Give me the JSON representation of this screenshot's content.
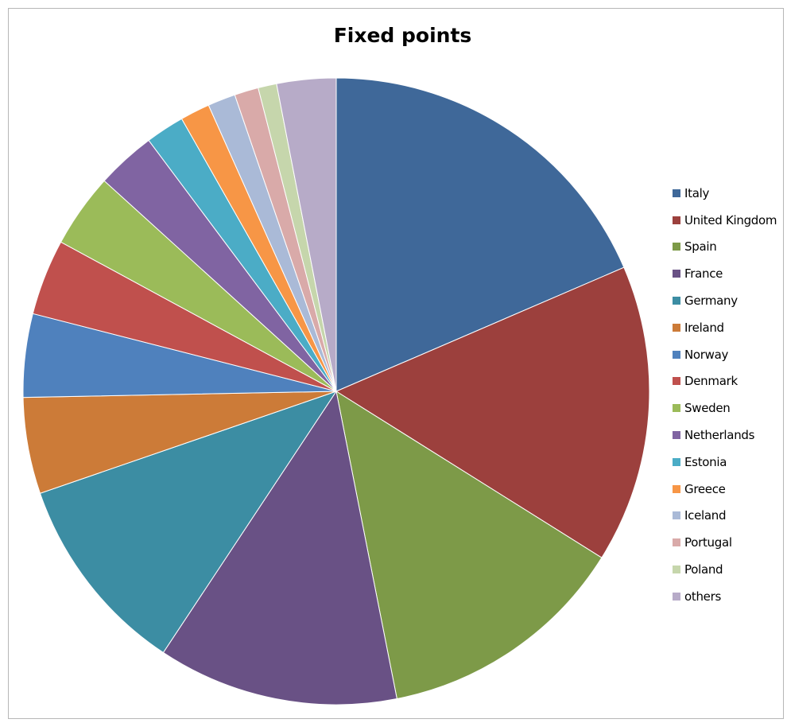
{
  "chart_data": {
    "type": "pie",
    "title": "Fixed points",
    "legend_position": "right",
    "categories": [
      "Italy",
      "United Kingdom",
      "Spain",
      "France",
      "Germany",
      "Ireland",
      "Norway",
      "Denmark",
      "Sweden",
      "Netherlands",
      "Estonia",
      "Greece",
      "Iceland",
      "Portugal",
      "Poland",
      "others"
    ],
    "values": [
      19.4,
      16.1,
      13.6,
      13.0,
      10.9,
      5.2,
      4.5,
      4.1,
      4.0,
      3.2,
      2.1,
      1.6,
      1.5,
      1.3,
      1.0,
      3.2
    ],
    "colors": [
      "#3f6899",
      "#9c403d",
      "#7d9a48",
      "#695185",
      "#3c8da3",
      "#cc7b38",
      "#4f81bd",
      "#c0504d",
      "#9bbb59",
      "#8064a2",
      "#4bacc6",
      "#f79646",
      "#aabad7",
      "#d9aaa9",
      "#c6d6ac",
      "#b7abc8"
    ]
  }
}
